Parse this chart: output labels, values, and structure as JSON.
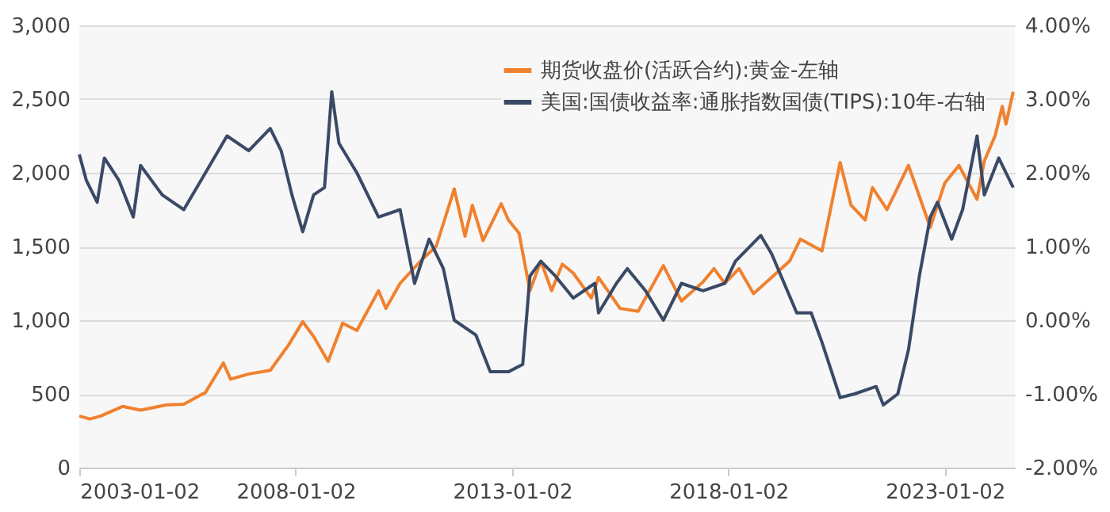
{
  "chart_data": {
    "type": "line",
    "xlim": [
      "2003-01-01",
      "2024-08-15"
    ],
    "xticks": [
      "2003-01-02",
      "2008-01-02",
      "2013-01-02",
      "2018-01-02",
      "2023-01-02"
    ],
    "ylim": [
      0,
      3000
    ],
    "yticks": [
      {
        "value": 0,
        "label": "0"
      },
      {
        "value": 500,
        "label": "500"
      },
      {
        "value": 1000,
        "label": "1,000"
      },
      {
        "value": 1500,
        "label": "1,500"
      },
      {
        "value": 2000,
        "label": "2,000"
      },
      {
        "value": 2500,
        "label": "2,500"
      },
      {
        "value": 3000,
        "label": "3,000"
      }
    ],
    "y2lim": [
      -2,
      4
    ],
    "y2ticks": [
      {
        "value": -2,
        "label": "-2.00%"
      },
      {
        "value": -1,
        "label": "-1.00%"
      },
      {
        "value": 0,
        "label": "0.00%"
      },
      {
        "value": 1,
        "label": "1.00%"
      },
      {
        "value": 2,
        "label": "2.00%"
      },
      {
        "value": 3,
        "label": "3.00%"
      },
      {
        "value": 4,
        "label": "4.00%"
      }
    ],
    "grid": "y",
    "legend": "top right",
    "series": [
      {
        "name": "期货收盘价(活跃合约):黄金-左轴",
        "color": "#f0812f",
        "x": [
          "2003-01",
          "2003-04",
          "2003-07",
          "2004-01",
          "2004-06",
          "2005-01",
          "2005-06",
          "2005-12",
          "2006-05",
          "2006-07",
          "2006-12",
          "2007-06",
          "2007-11",
          "2008-03",
          "2008-06",
          "2008-10",
          "2009-02",
          "2009-06",
          "2009-12",
          "2010-02",
          "2010-06",
          "2010-12",
          "2011-04",
          "2011-09",
          "2011-12",
          "2012-02",
          "2012-05",
          "2012-10",
          "2012-12",
          "2013-03",
          "2013-06",
          "2013-09",
          "2013-12",
          "2014-03",
          "2014-06",
          "2014-11",
          "2015-01",
          "2015-07",
          "2015-12",
          "2016-07",
          "2016-12",
          "2017-06",
          "2017-09",
          "2017-12",
          "2018-04",
          "2018-08",
          "2019-01",
          "2019-06",
          "2019-09",
          "2020-03",
          "2020-08",
          "2020-11",
          "2021-03",
          "2021-05",
          "2021-09",
          "2022-03",
          "2022-09",
          "2023-01",
          "2023-05",
          "2023-10",
          "2023-12",
          "2024-03",
          "2024-05",
          "2024-06",
          "2024-08"
        ],
        "values": [
          350,
          330,
          350,
          415,
          390,
          425,
          430,
          510,
          710,
          600,
          635,
          660,
          830,
          990,
          890,
          720,
          980,
          930,
          1200,
          1080,
          1250,
          1410,
          1500,
          1890,
          1570,
          1780,
          1540,
          1790,
          1680,
          1590,
          1200,
          1400,
          1200,
          1380,
          1320,
          1150,
          1290,
          1080,
          1060,
          1370,
          1130,
          1260,
          1350,
          1250,
          1350,
          1180,
          1290,
          1400,
          1550,
          1470,
          2070,
          1780,
          1680,
          1900,
          1750,
          2050,
          1630,
          1930,
          2050,
          1820,
          2080,
          2250,
          2450,
          2330,
          2550
        ]
      },
      {
        "name": "美国:国债收益率:通胀指数国债(TIPS):10年-右轴",
        "color": "#3a4a66",
        "axis": "y2",
        "x": [
          "2003-01",
          "2003-03",
          "2003-06",
          "2003-08",
          "2003-12",
          "2004-04",
          "2004-06",
          "2004-12",
          "2005-06",
          "2005-12",
          "2006-06",
          "2006-12",
          "2007-06",
          "2007-09",
          "2007-12",
          "2008-03",
          "2008-06",
          "2008-09",
          "2008-11",
          "2009-01",
          "2009-06",
          "2009-12",
          "2010-06",
          "2010-10",
          "2011-02",
          "2011-06",
          "2011-09",
          "2012-03",
          "2012-07",
          "2012-12",
          "2013-04",
          "2013-06",
          "2013-09",
          "2014-01",
          "2014-06",
          "2014-12",
          "2015-01",
          "2015-06",
          "2015-09",
          "2016-02",
          "2016-07",
          "2016-12",
          "2017-06",
          "2017-12",
          "2018-03",
          "2018-10",
          "2019-01",
          "2019-08",
          "2019-12",
          "2020-03",
          "2020-08",
          "2020-12",
          "2021-06",
          "2021-08",
          "2021-12",
          "2022-03",
          "2022-06",
          "2022-09",
          "2022-11",
          "2023-03",
          "2023-06",
          "2023-10",
          "2023-12",
          "2024-04",
          "2024-08"
        ],
        "values": [
          2.25,
          1.9,
          1.6,
          2.2,
          1.9,
          1.4,
          2.1,
          1.7,
          1.5,
          2.0,
          2.5,
          2.3,
          2.6,
          2.3,
          1.7,
          1.2,
          1.7,
          1.8,
          3.1,
          2.4,
          2.0,
          1.4,
          1.5,
          0.5,
          1.1,
          0.7,
          0.0,
          -0.2,
          -0.7,
          -0.7,
          -0.6,
          0.6,
          0.8,
          0.6,
          0.3,
          0.5,
          0.1,
          0.5,
          0.7,
          0.4,
          0.0,
          0.5,
          0.4,
          0.5,
          0.8,
          1.15,
          0.9,
          0.1,
          0.1,
          -0.3,
          -1.05,
          -1.0,
          -0.9,
          -1.15,
          -1.0,
          -0.4,
          0.6,
          1.4,
          1.6,
          1.1,
          1.5,
          2.5,
          1.7,
          2.2,
          1.8
        ]
      }
    ]
  }
}
